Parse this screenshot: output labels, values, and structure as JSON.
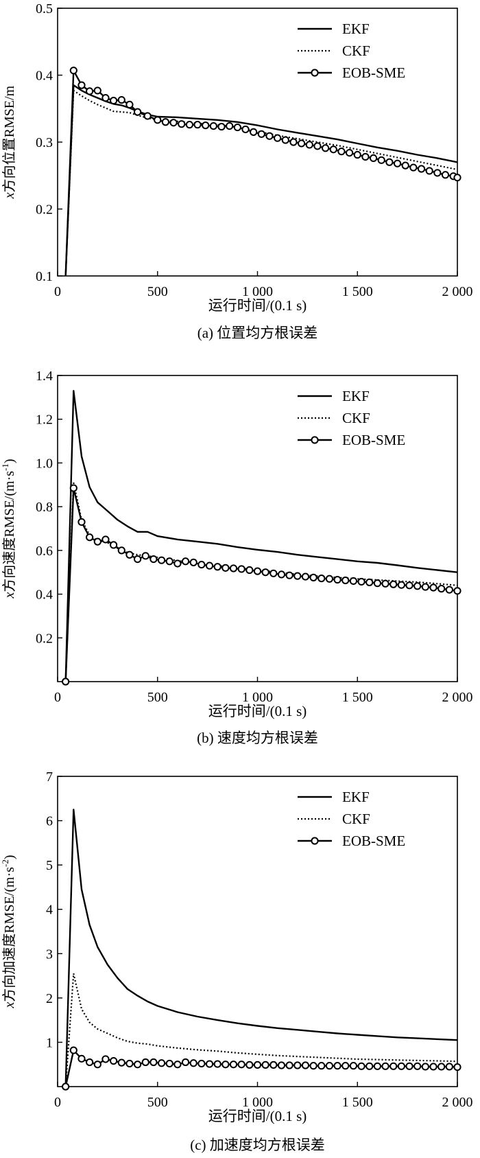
{
  "chart_data": [
    {
      "type": "line",
      "caption": "(a) 位置均方根误差",
      "xlabel": "运行时间/(0.1 s)",
      "ylabel_parts": [
        "x",
        "方向位置RMSE/m"
      ],
      "xlim": [
        0,
        2000
      ],
      "ylim": [
        0.1,
        0.5
      ],
      "xticks": [
        0,
        500,
        1000,
        1500,
        2000
      ],
      "xtick_labels": [
        "0",
        "500",
        "1 000",
        "1 500",
        "2 000"
      ],
      "yticks": [
        0.1,
        0.2,
        0.3,
        0.4,
        0.5
      ],
      "ytick_labels": [
        "0.1",
        "0.2",
        "0.3",
        "0.4",
        "0.5"
      ],
      "legend_position": "top-right",
      "series": [
        {
          "name": "EKF",
          "style": "solid",
          "x": [
            40,
            80,
            120,
            160,
            200,
            240,
            280,
            320,
            360,
            400,
            450,
            500,
            600,
            700,
            800,
            900,
            1000,
            1100,
            1200,
            1300,
            1400,
            1500,
            1600,
            1700,
            1800,
            1900,
            2000
          ],
          "y": [
            0.1,
            0.385,
            0.377,
            0.371,
            0.366,
            0.361,
            0.357,
            0.355,
            0.351,
            0.346,
            0.341,
            0.338,
            0.337,
            0.335,
            0.333,
            0.33,
            0.325,
            0.319,
            0.314,
            0.309,
            0.304,
            0.298,
            0.292,
            0.287,
            0.281,
            0.276,
            0.27
          ]
        },
        {
          "name": "CKF",
          "style": "dotted",
          "x": [
            40,
            80,
            120,
            160,
            200,
            240,
            280,
            320,
            360,
            400,
            450,
            500,
            600,
            700,
            800,
            900,
            1000,
            1100,
            1200,
            1300,
            1400,
            1500,
            1600,
            1700,
            1800,
            1900,
            2000
          ],
          "y": [
            0.1,
            0.377,
            0.369,
            0.362,
            0.356,
            0.351,
            0.346,
            0.345,
            0.344,
            0.34,
            0.336,
            0.333,
            0.331,
            0.328,
            0.326,
            0.322,
            0.316,
            0.31,
            0.305,
            0.3,
            0.295,
            0.289,
            0.283,
            0.277,
            0.271,
            0.265,
            0.259
          ]
        },
        {
          "name": "EOB-SME",
          "style": "solid-circle",
          "x": [
            40,
            80,
            120,
            160,
            200,
            240,
            280,
            320,
            360,
            400,
            450,
            500,
            540,
            580,
            620,
            660,
            700,
            740,
            780,
            820,
            860,
            900,
            940,
            980,
            1020,
            1060,
            1100,
            1140,
            1180,
            1220,
            1260,
            1300,
            1340,
            1380,
            1420,
            1460,
            1500,
            1540,
            1580,
            1620,
            1660,
            1700,
            1740,
            1780,
            1820,
            1860,
            1900,
            1940,
            1980,
            2000
          ],
          "y": [
            0.1,
            0.407,
            0.385,
            0.376,
            0.377,
            0.366,
            0.362,
            0.363,
            0.356,
            0.345,
            0.339,
            0.333,
            0.33,
            0.329,
            0.327,
            0.326,
            0.326,
            0.325,
            0.324,
            0.323,
            0.324,
            0.322,
            0.319,
            0.315,
            0.312,
            0.309,
            0.306,
            0.303,
            0.3,
            0.298,
            0.296,
            0.294,
            0.291,
            0.289,
            0.286,
            0.284,
            0.281,
            0.278,
            0.276,
            0.273,
            0.27,
            0.268,
            0.265,
            0.262,
            0.26,
            0.257,
            0.254,
            0.251,
            0.249,
            0.247
          ],
          "marker_x": [
            80,
            120,
            160,
            200,
            240,
            280,
            320,
            360,
            400,
            450,
            500,
            540,
            580,
            620,
            660,
            700,
            740,
            780,
            820,
            860,
            900,
            940,
            980,
            1020,
            1060,
            1100,
            1140,
            1180,
            1220,
            1260,
            1300,
            1340,
            1380,
            1420,
            1460,
            1500,
            1540,
            1580,
            1620,
            1660,
            1700,
            1740,
            1780,
            1820,
            1860,
            1900,
            1940,
            1980,
            2000
          ]
        }
      ]
    },
    {
      "type": "line",
      "caption": "(b) 速度均方根误差",
      "xlabel": "运行时间/(0.1 s)",
      "ylabel_parts": [
        "x",
        "方向速度RMSE/(m·s",
        "-1",
        ")"
      ],
      "xlim": [
        0,
        2000
      ],
      "ylim": [
        0.0,
        1.4
      ],
      "xticks": [
        0,
        500,
        1000,
        1500,
        2000
      ],
      "xtick_labels": [
        "0",
        "500",
        "1 000",
        "1 500",
        "2 000"
      ],
      "yticks": [
        0.2,
        0.4,
        0.6,
        0.8,
        1.0,
        1.2,
        1.4
      ],
      "ytick_labels": [
        "0.2",
        "0.4",
        "0.6",
        "0.8",
        "1.0",
        "1.2",
        "1.4"
      ],
      "legend_position": "top-right",
      "series": [
        {
          "name": "EKF",
          "style": "solid",
          "x": [
            40,
            80,
            120,
            160,
            200,
            250,
            300,
            350,
            400,
            450,
            500,
            600,
            700,
            800,
            900,
            1000,
            1100,
            1200,
            1300,
            1400,
            1500,
            1600,
            1700,
            1800,
            1900,
            2000
          ],
          "y": [
            0.0,
            1.33,
            1.03,
            0.89,
            0.82,
            0.78,
            0.74,
            0.71,
            0.685,
            0.685,
            0.665,
            0.65,
            0.64,
            0.63,
            0.615,
            0.603,
            0.593,
            0.58,
            0.57,
            0.56,
            0.55,
            0.543,
            0.532,
            0.52,
            0.51,
            0.5
          ]
        },
        {
          "name": "CKF",
          "style": "dotted",
          "x": [
            40,
            80,
            120,
            160,
            200,
            250,
            300,
            350,
            400,
            450,
            500,
            600,
            700,
            800,
            900,
            1000,
            1100,
            1200,
            1300,
            1400,
            1500,
            1600,
            1700,
            1800,
            1900,
            2000
          ],
          "y": [
            0.0,
            0.91,
            0.74,
            0.67,
            0.645,
            0.635,
            0.61,
            0.59,
            0.58,
            0.575,
            0.568,
            0.553,
            0.54,
            0.53,
            0.52,
            0.51,
            0.5,
            0.49,
            0.482,
            0.476,
            0.47,
            0.465,
            0.46,
            0.455,
            0.448,
            0.44
          ]
        },
        {
          "name": "EOB-SME",
          "style": "solid-circle",
          "x": [
            40,
            80,
            120,
            160,
            200,
            240,
            280,
            320,
            360,
            400,
            440,
            480,
            520,
            560,
            600,
            640,
            680,
            720,
            760,
            800,
            840,
            880,
            920,
            960,
            1000,
            1040,
            1080,
            1120,
            1160,
            1200,
            1240,
            1280,
            1320,
            1360,
            1400,
            1440,
            1480,
            1520,
            1560,
            1600,
            1640,
            1680,
            1720,
            1760,
            1800,
            1840,
            1880,
            1920,
            1960,
            2000
          ],
          "y": [
            0.0,
            0.885,
            0.73,
            0.66,
            0.64,
            0.65,
            0.625,
            0.6,
            0.58,
            0.56,
            0.575,
            0.56,
            0.555,
            0.55,
            0.54,
            0.55,
            0.545,
            0.535,
            0.53,
            0.525,
            0.52,
            0.518,
            0.515,
            0.51,
            0.505,
            0.5,
            0.495,
            0.49,
            0.486,
            0.483,
            0.48,
            0.476,
            0.472,
            0.47,
            0.466,
            0.463,
            0.46,
            0.457,
            0.454,
            0.45,
            0.448,
            0.445,
            0.442,
            0.44,
            0.437,
            0.433,
            0.43,
            0.425,
            0.42,
            0.415
          ],
          "marker_x": [
            40,
            80,
            120,
            160,
            200,
            240,
            280,
            320,
            360,
            400,
            440,
            480,
            520,
            560,
            600,
            640,
            680,
            720,
            760,
            800,
            840,
            880,
            920,
            960,
            1000,
            1040,
            1080,
            1120,
            1160,
            1200,
            1240,
            1280,
            1320,
            1360,
            1400,
            1440,
            1480,
            1520,
            1560,
            1600,
            1640,
            1680,
            1720,
            1760,
            1800,
            1840,
            1880,
            1920,
            1960,
            2000
          ]
        }
      ]
    },
    {
      "type": "line",
      "caption": "(c) 加速度均方根误差",
      "xlabel": "运行时间/(0.1 s)",
      "ylabel_parts": [
        "x",
        "方向加速度RMSE/(m·s",
        "-2",
        ")"
      ],
      "xlim": [
        0,
        2000
      ],
      "ylim": [
        0,
        7
      ],
      "xticks": [
        0,
        500,
        1000,
        1500,
        2000
      ],
      "xtick_labels": [
        "0",
        "500",
        "1 000",
        "1 500",
        "2 000"
      ],
      "yticks": [
        1,
        2,
        3,
        4,
        5,
        6,
        7
      ],
      "ytick_labels": [
        "1",
        "2",
        "3",
        "4",
        "5",
        "6",
        "7"
      ],
      "legend_position": "top-right",
      "series": [
        {
          "name": "EKF",
          "style": "solid",
          "x": [
            40,
            80,
            120,
            160,
            200,
            250,
            300,
            350,
            400,
            450,
            500,
            600,
            700,
            800,
            900,
            1000,
            1100,
            1200,
            1300,
            1400,
            1500,
            1600,
            1700,
            1800,
            1900,
            2000
          ],
          "y": [
            0.0,
            6.25,
            4.45,
            3.65,
            3.15,
            2.75,
            2.45,
            2.2,
            2.05,
            1.92,
            1.82,
            1.68,
            1.58,
            1.5,
            1.43,
            1.37,
            1.32,
            1.28,
            1.24,
            1.2,
            1.17,
            1.14,
            1.11,
            1.09,
            1.07,
            1.05
          ]
        },
        {
          "name": "CKF",
          "style": "dotted",
          "x": [
            40,
            80,
            120,
            160,
            200,
            250,
            300,
            350,
            400,
            450,
            500,
            600,
            700,
            800,
            900,
            1000,
            1100,
            1200,
            1300,
            1400,
            1500,
            1600,
            1700,
            1800,
            1900,
            2000
          ],
          "y": [
            0.0,
            2.55,
            1.75,
            1.45,
            1.3,
            1.2,
            1.1,
            1.02,
            0.98,
            0.96,
            0.92,
            0.87,
            0.83,
            0.8,
            0.76,
            0.73,
            0.7,
            0.68,
            0.66,
            0.64,
            0.62,
            0.61,
            0.6,
            0.59,
            0.58,
            0.57
          ]
        },
        {
          "name": "EOB-SME",
          "style": "solid-circle",
          "x": [
            40,
            80,
            120,
            160,
            200,
            240,
            280,
            320,
            360,
            400,
            440,
            480,
            520,
            560,
            600,
            640,
            680,
            720,
            760,
            800,
            840,
            880,
            920,
            960,
            1000,
            1040,
            1080,
            1120,
            1160,
            1200,
            1240,
            1280,
            1320,
            1360,
            1400,
            1440,
            1480,
            1520,
            1560,
            1600,
            1640,
            1680,
            1720,
            1760,
            1800,
            1840,
            1880,
            1920,
            1960,
            2000
          ],
          "y": [
            0.0,
            0.82,
            0.63,
            0.55,
            0.5,
            0.62,
            0.58,
            0.54,
            0.52,
            0.5,
            0.55,
            0.55,
            0.53,
            0.52,
            0.5,
            0.55,
            0.53,
            0.52,
            0.51,
            0.51,
            0.5,
            0.5,
            0.5,
            0.49,
            0.49,
            0.49,
            0.49,
            0.48,
            0.48,
            0.48,
            0.48,
            0.47,
            0.47,
            0.47,
            0.47,
            0.47,
            0.47,
            0.46,
            0.46,
            0.46,
            0.46,
            0.46,
            0.46,
            0.46,
            0.46,
            0.45,
            0.45,
            0.45,
            0.45,
            0.44
          ],
          "marker_x": [
            40,
            80,
            120,
            160,
            200,
            240,
            280,
            320,
            360,
            400,
            440,
            480,
            520,
            560,
            600,
            640,
            680,
            720,
            760,
            800,
            840,
            880,
            920,
            960,
            1000,
            1040,
            1080,
            1120,
            1160,
            1200,
            1240,
            1280,
            1320,
            1360,
            1400,
            1440,
            1480,
            1520,
            1560,
            1600,
            1640,
            1680,
            1720,
            1760,
            1800,
            1840,
            1880,
            1920,
            1960,
            2000
          ]
        }
      ]
    }
  ]
}
